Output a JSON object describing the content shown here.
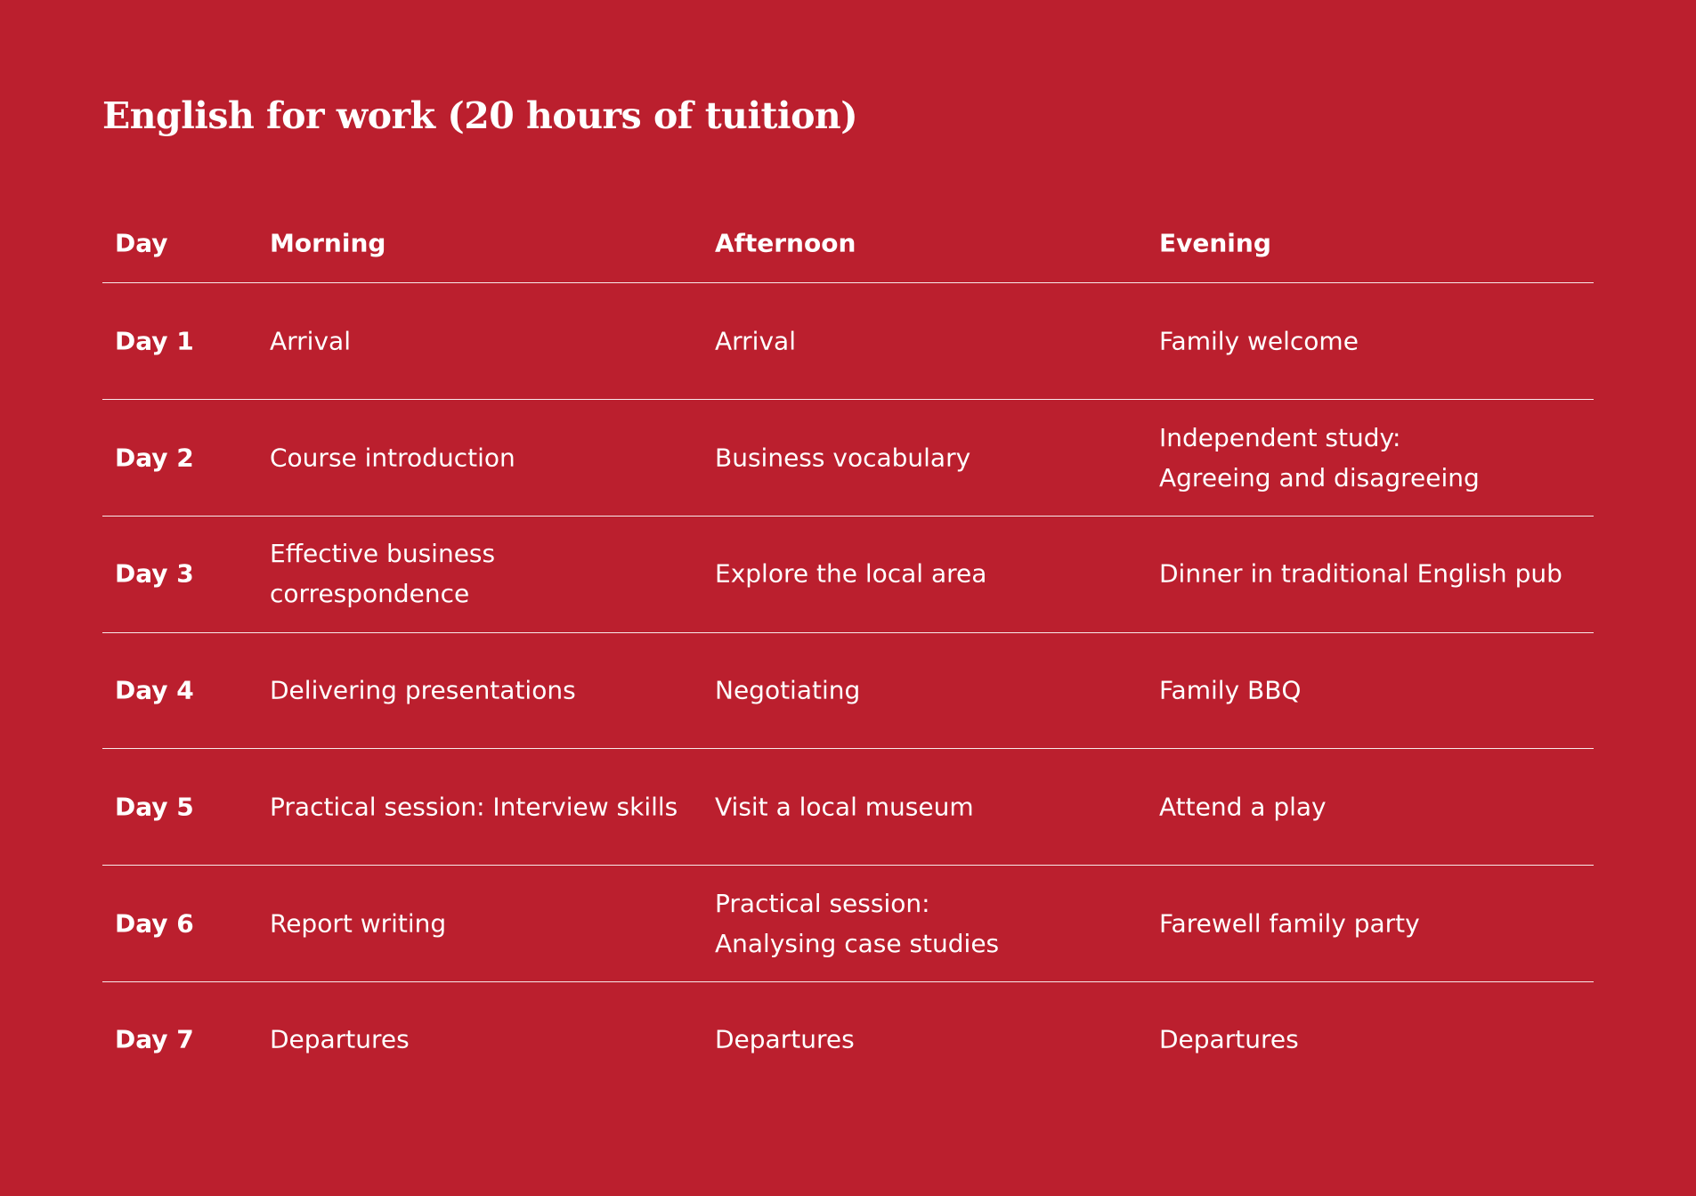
{
  "title": "English for work (20 hours of tuition)",
  "table": {
    "header": [
      "Day",
      "Morning",
      "Afternoon",
      "Evening"
    ],
    "rows": [
      [
        "Day 1",
        "Arrival",
        "Arrival",
        "Family welcome"
      ],
      [
        "Day 2",
        "Course introduction",
        "Business vocabulary",
        [
          "Independent study:",
          "Agreeing and disagreeing"
        ]
      ],
      [
        "Day 3",
        [
          "Effective business",
          "correspondence"
        ],
        "Explore the local area",
        "Dinner in traditional English pub"
      ],
      [
        "Day 4",
        "Delivering presentations",
        "Negotiating",
        "Family BBQ"
      ],
      [
        "Day 5",
        "Practical session: Interview skills",
        "Visit a local museum",
        "Attend a play"
      ],
      [
        "Day 6",
        "Report writing",
        [
          "Practical session:",
          "Analysing case studies"
        ],
        "Farewell family party"
      ],
      [
        "Day 7",
        "Departures",
        "Departures",
        "Departures"
      ]
    ]
  }
}
